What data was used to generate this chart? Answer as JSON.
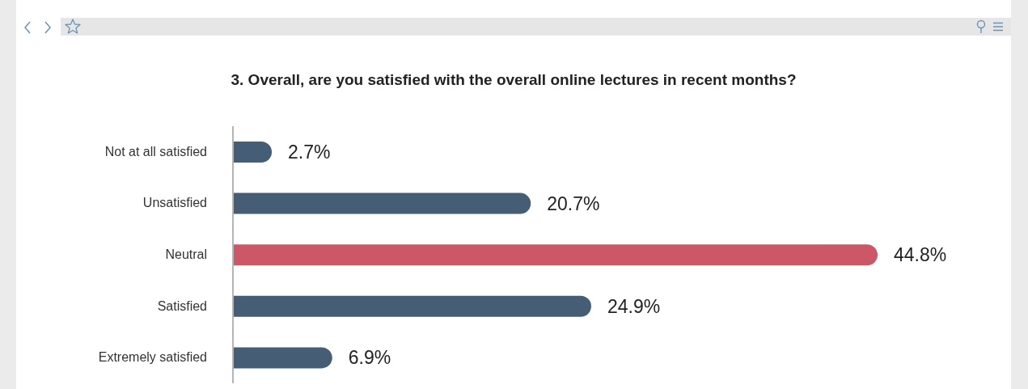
{
  "chart_data": {
    "type": "bar",
    "orientation": "horizontal",
    "title": "3. Overall, are you satisfied with the overall online lectures in recent months?",
    "categories": [
      "Not at all satisfied",
      "Unsatisfied",
      "Neutral",
      "Satisfied",
      "Extremely satisfied"
    ],
    "values": [
      2.7,
      20.7,
      44.8,
      24.9,
      6.9
    ],
    "value_labels": [
      "2.7%",
      "20.7%",
      "44.8%",
      "24.9%",
      "6.9%"
    ],
    "colors": [
      "#455d75",
      "#455d75",
      "#cc5766",
      "#455d75",
      "#455d75"
    ],
    "grid": false,
    "legend": false
  }
}
